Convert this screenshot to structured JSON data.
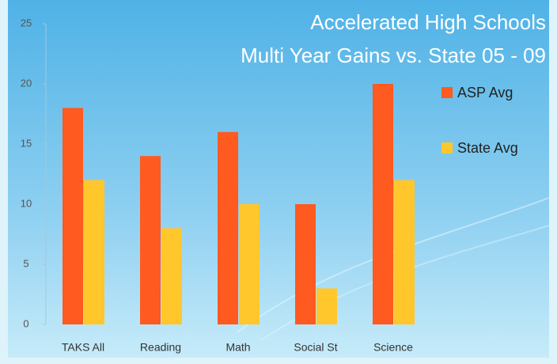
{
  "chart_data": {
    "type": "bar",
    "title": "Accelerated High Schools",
    "subtitle": "Multi Year Gains vs. State 05 - 09",
    "categories": [
      "TAKS All",
      "Reading",
      "Math",
      "Social St",
      "Science"
    ],
    "series": [
      {
        "name": "ASP Avg",
        "color": "#ff5a1f",
        "values": [
          18,
          14,
          16,
          10,
          20
        ]
      },
      {
        "name": "State Avg",
        "color": "#ffc72c",
        "values": [
          12,
          8,
          10,
          3,
          12
        ]
      }
    ],
    "ylim": [
      0,
      25
    ],
    "yticks": [
      0,
      5,
      10,
      15,
      20,
      25
    ],
    "grid": false,
    "legend": "right"
  }
}
